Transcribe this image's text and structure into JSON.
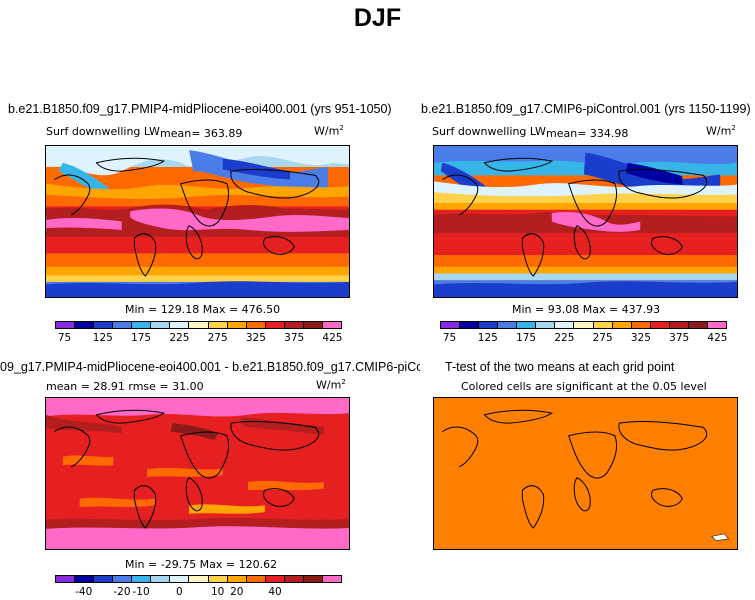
{
  "page": {
    "title": "DJF"
  },
  "panels": {
    "top_left": {
      "run_title": "b.e21.B1850.f09_g17.PMIP4-midPliocene-eoi400.001 (yrs 951-1050)",
      "variable_label": "Surf downwelling LW",
      "mean_text": "mean= 363.89",
      "units_base": "W/m",
      "units_exp": "2",
      "minmax_text": "Min = 129.18 Max = 476.50"
    },
    "top_right": {
      "run_title": "b.e21.B1850.f09_g17.CMIP6-piControl.001 (yrs 1150-1199)",
      "variable_label": "Surf downwelling LW",
      "mean_text": "mean= 334.98",
      "units_base": "W/m",
      "units_exp": "2",
      "minmax_text": "Min =  93.08 Max = 437.93"
    },
    "bottom_left": {
      "run_title": "09_g17.PMIP4-midPliocene-eoi400.001 - b.e21.B1850.f09_g17.CMIP6-piControl.001",
      "stats_text": "mean =  28.91    rmse =  31.00",
      "units_base": "W/m",
      "units_exp": "2",
      "minmax_text": "Min = -29.75 Max = 120.62"
    },
    "bottom_right": {
      "run_title": "T-test of the two means at each grid point",
      "subtitle": "Colored cells are significant at the 0.05 level",
      "fill_color": "#ff7f00"
    }
  },
  "colorbars": {
    "abs": {
      "colors": [
        "#8a2be2",
        "#0000a0",
        "#1a3dcc",
        "#4a7de8",
        "#35b5e8",
        "#a8d8f0",
        "#dff3ff",
        "#fff7c0",
        "#ffd24a",
        "#ffa500",
        "#ff6a00",
        "#e62020",
        "#b41e1e",
        "#8b1a1a",
        "#ff69c8"
      ],
      "tick_labels": [
        "75",
        "125",
        "175",
        "225",
        "275",
        "325",
        "375",
        "425"
      ]
    },
    "diff": {
      "colors": [
        "#8a2be2",
        "#0000a0",
        "#1a3dcc",
        "#4a7de8",
        "#35b5e8",
        "#a8d8f0",
        "#dff3ff",
        "#fff7c0",
        "#ffd24a",
        "#ffa500",
        "#ff6a00",
        "#e62020",
        "#b41e1e",
        "#8b1a1a",
        "#ff69c8"
      ],
      "tick_labels": [
        "-40",
        "-20",
        "-10",
        "0",
        "10",
        "20",
        "40"
      ]
    }
  }
}
